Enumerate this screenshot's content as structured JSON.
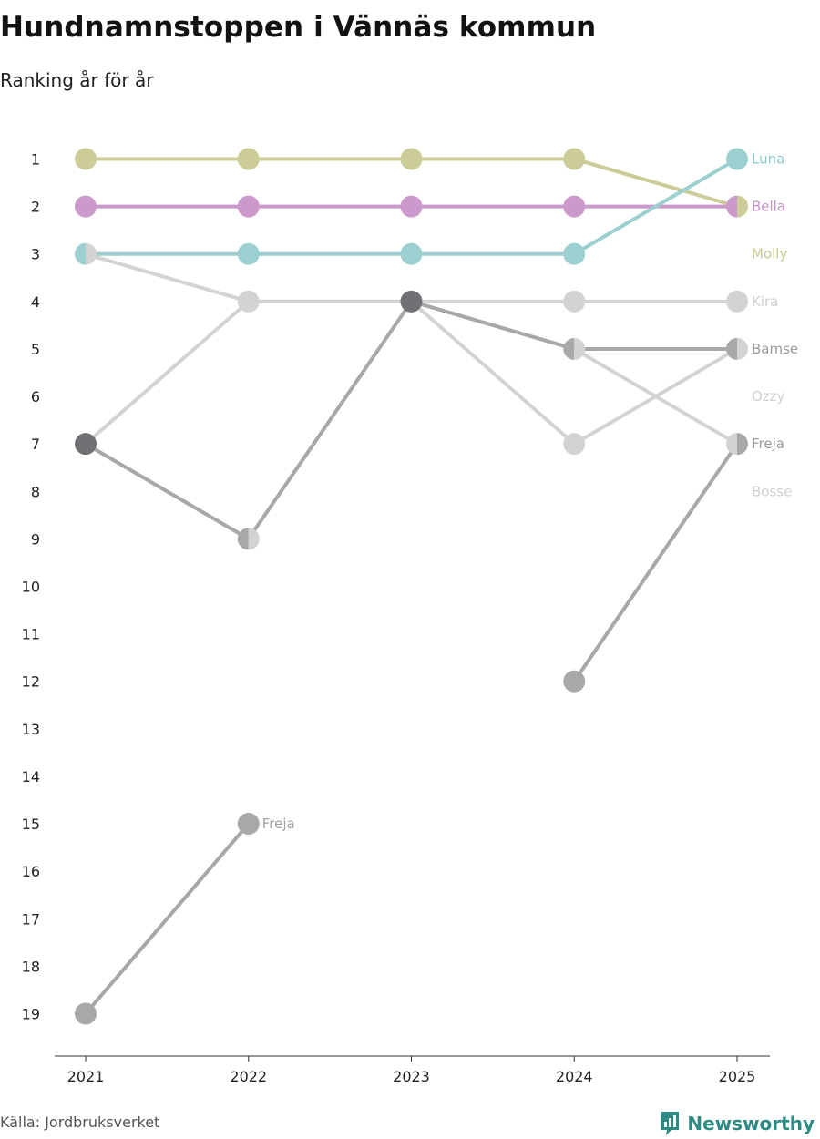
{
  "title": "Hundnamnstoppen i Vännäs kommun",
  "subtitle": "Ranking år för år",
  "source": "Källa: Jordbruksverket",
  "brand": {
    "name": "Newsworthy",
    "icon": "bar-chart-badge-icon",
    "color": "#2e8b84"
  },
  "chart_data": {
    "type": "line",
    "subtype": "bump",
    "title": "Hundnamnstoppen i Vännäs kommun",
    "subtitle": "Ranking år för år",
    "xlabel": "",
    "ylabel": "",
    "x": [
      "2021",
      "2022",
      "2023",
      "2024",
      "2025"
    ],
    "yticks": [
      1,
      2,
      3,
      4,
      5,
      6,
      7,
      8,
      9,
      10,
      11,
      12,
      13,
      14,
      15,
      16,
      17,
      18,
      19
    ],
    "ylim": [
      1,
      19
    ],
    "y_reversed": true,
    "grid": false,
    "series": [
      {
        "name": "Luna",
        "values": [
          3,
          3,
          3,
          3,
          1
        ],
        "color": "#9ccfcf",
        "label": "Luna"
      },
      {
        "name": "Bella",
        "values": [
          2,
          2,
          2,
          2,
          2
        ],
        "color": "#cc99cc",
        "label": "Bella"
      },
      {
        "name": "Molly",
        "values": [
          1,
          1,
          1,
          1,
          2
        ],
        "color": "#cccc99",
        "label": "Molly"
      },
      {
        "name": "Kira",
        "values": [
          3,
          4,
          4,
          4,
          4
        ],
        "color": "#d3d3d3",
        "label": "Kira"
      },
      {
        "name": "Bamse",
        "values": [
          7,
          9,
          4,
          5,
          5
        ],
        "color": "#a8a8a8",
        "label": "Bamse"
      },
      {
        "name": "Ozzy",
        "values": [
          7,
          4,
          4,
          7,
          5
        ],
        "color": "#d3d3d3",
        "label": "Ozzy"
      },
      {
        "name": "Freja",
        "values": [
          19,
          15,
          null,
          null,
          null
        ],
        "color": "#a8a8a8",
        "label": "Freja"
      },
      {
        "name": "Freja",
        "values": [
          null,
          null,
          4,
          5,
          7
        ],
        "color": "#d3d3d3",
        "label": ""
      },
      {
        "name": "Freja",
        "values": [
          null,
          null,
          null,
          12,
          7
        ],
        "color": "#a8a8a8",
        "label": ""
      },
      {
        "name": "Bosse",
        "values": [
          null,
          null,
          null,
          null,
          null
        ],
        "color": "#d3d3d3",
        "label": "Bosse",
        "label_rank": 8
      }
    ],
    "end_labels": [
      {
        "text": "Luna",
        "rank": 1,
        "color": "#8ccac9"
      },
      {
        "text": "Bella",
        "rank": 2,
        "color": "#c493c6"
      },
      {
        "text": "Molly",
        "rank": 3,
        "color": "#c8c890"
      },
      {
        "text": "Kira",
        "rank": 4,
        "color": "#cfcfcf"
      },
      {
        "text": "Bamse",
        "rank": 5,
        "color": "#9a9a9a"
      },
      {
        "text": "Ozzy",
        "rank": 6,
        "color": "#cfcfcf"
      },
      {
        "text": "Freja",
        "rank": 7,
        "color": "#9a9a9a"
      },
      {
        "text": "Bosse",
        "rank": 8,
        "color": "#cfcfcf"
      }
    ],
    "inline_labels": [
      {
        "text": "Freja",
        "x": "2022",
        "rank": 15,
        "color": "#a0a0a0"
      }
    ],
    "markers": [
      {
        "x": "2021",
        "rank": 1,
        "colors": [
          "#cccc99"
        ]
      },
      {
        "x": "2021",
        "rank": 2,
        "colors": [
          "#cc99cc"
        ]
      },
      {
        "x": "2021",
        "rank": 3,
        "colors": [
          "#9ccfcf",
          "#d3d3d3"
        ]
      },
      {
        "x": "2021",
        "rank": 7,
        "colors": [
          "#707075"
        ]
      },
      {
        "x": "2021",
        "rank": 19,
        "colors": [
          "#a8a8a8"
        ]
      },
      {
        "x": "2022",
        "rank": 1,
        "colors": [
          "#cccc99"
        ]
      },
      {
        "x": "2022",
        "rank": 2,
        "colors": [
          "#cc99cc"
        ]
      },
      {
        "x": "2022",
        "rank": 3,
        "colors": [
          "#9ccfcf"
        ]
      },
      {
        "x": "2022",
        "rank": 4,
        "colors": [
          "#d3d3d3"
        ]
      },
      {
        "x": "2022",
        "rank": 9,
        "colors": [
          "#a8a8a8",
          "#d3d3d3"
        ]
      },
      {
        "x": "2022",
        "rank": 15,
        "colors": [
          "#a8a8a8"
        ]
      },
      {
        "x": "2023",
        "rank": 1,
        "colors": [
          "#cccc99"
        ]
      },
      {
        "x": "2023",
        "rank": 2,
        "colors": [
          "#cc99cc"
        ]
      },
      {
        "x": "2023",
        "rank": 3,
        "colors": [
          "#9ccfcf"
        ]
      },
      {
        "x": "2023",
        "rank": 4,
        "colors": [
          "#707075"
        ]
      },
      {
        "x": "2024",
        "rank": 1,
        "colors": [
          "#cccc99"
        ]
      },
      {
        "x": "2024",
        "rank": 2,
        "colors": [
          "#cc99cc"
        ]
      },
      {
        "x": "2024",
        "rank": 3,
        "colors": [
          "#9ccfcf"
        ]
      },
      {
        "x": "2024",
        "rank": 4,
        "colors": [
          "#d3d3d3"
        ]
      },
      {
        "x": "2024",
        "rank": 5,
        "colors": [
          "#a8a8a8",
          "#d3d3d3"
        ]
      },
      {
        "x": "2024",
        "rank": 7,
        "colors": [
          "#d3d3d3"
        ]
      },
      {
        "x": "2024",
        "rank": 12,
        "colors": [
          "#a8a8a8"
        ]
      },
      {
        "x": "2025",
        "rank": 1,
        "colors": [
          "#9ccfcf"
        ]
      },
      {
        "x": "2025",
        "rank": 2,
        "colors": [
          "#cc99cc",
          "#cccc99"
        ]
      },
      {
        "x": "2025",
        "rank": 4,
        "colors": [
          "#d3d3d3"
        ]
      },
      {
        "x": "2025",
        "rank": 5,
        "colors": [
          "#a8a8a8",
          "#d3d3d3"
        ]
      },
      {
        "x": "2025",
        "rank": 7,
        "colors": [
          "#d3d3d3",
          "#a8a8a8"
        ]
      }
    ]
  }
}
